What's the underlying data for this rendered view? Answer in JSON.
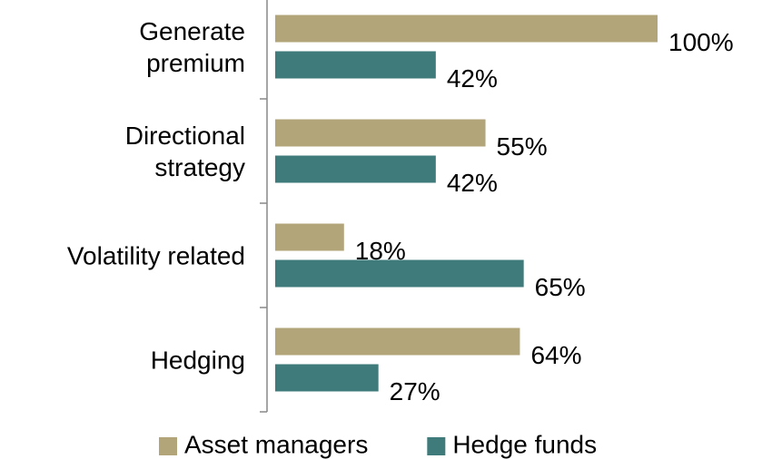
{
  "chart_data": {
    "type": "bar",
    "orientation": "horizontal",
    "categories": [
      "Generate\npremium",
      "Directional\nstrategy",
      "Volatility related",
      "Hedging"
    ],
    "series": [
      {
        "name": "Asset managers",
        "color": "#b3a57a",
        "values": [
          100,
          55,
          18,
          64
        ],
        "value_labels": [
          "100%",
          "55%",
          "18%",
          "64%"
        ]
      },
      {
        "name": "Hedge funds",
        "color": "#3f7b7a",
        "values": [
          42,
          42,
          65,
          27
        ],
        "value_labels": [
          "42%",
          "42%",
          "65%",
          "27%"
        ]
      }
    ],
    "xlim": [
      0,
      100
    ],
    "legend": "bottom"
  }
}
